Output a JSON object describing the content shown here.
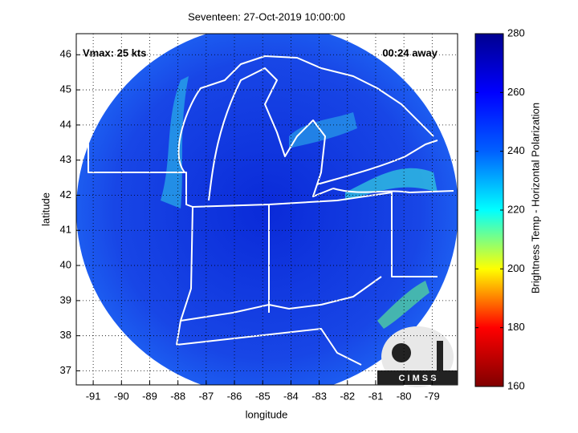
{
  "chart_data": {
    "type": "map",
    "title": "Seventeen: 27-Oct-2019 10:00:00",
    "x_label": "longitude",
    "y_label": "latitude",
    "xlim": [
      -91.6,
      -78.1
    ],
    "ylim": [
      36.6,
      46.6
    ],
    "xticks": [
      -91,
      -90,
      -89,
      -88,
      -87,
      -86,
      -85,
      -84,
      -83,
      -82,
      -81,
      -80,
      -79
    ],
    "yticks": [
      37,
      38,
      39,
      40,
      41,
      42,
      43,
      44,
      45,
      46
    ],
    "grid": true,
    "annotations": [
      "Vmax: 25 kts",
      "00:24 away",
      "C I M S S"
    ],
    "colorbar": {
      "label": "Brightness Temp - Horizontal Polarization",
      "lim": [
        160,
        280
      ],
      "ticks": [
        160,
        180,
        200,
        220,
        240,
        260,
        280
      ],
      "colors": [
        "#800000",
        "#ff0000",
        "#ffff00",
        "#00ffff",
        "#0060ff",
        "#0000ff",
        "#00008f"
      ]
    }
  }
}
